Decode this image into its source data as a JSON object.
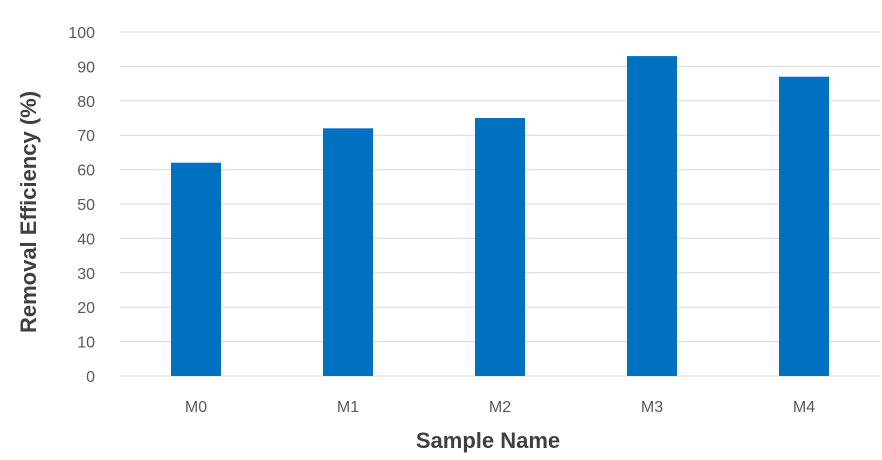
{
  "chart_data": {
    "type": "bar",
    "title": "",
    "xlabel": "Sample Name",
    "ylabel": "Removal Efficiency (%)",
    "categories": [
      "M0",
      "M1",
      "M2",
      "M3",
      "M4"
    ],
    "values": [
      62,
      72,
      75,
      93,
      87
    ],
    "ylim": [
      0,
      100
    ],
    "yticks": [
      0,
      10,
      20,
      30,
      40,
      50,
      60,
      70,
      80,
      90,
      100
    ],
    "grid": "horizontal",
    "legend": "none",
    "bar_color": "#0070C0",
    "grid_color": "#D9D9D9",
    "text_color": "#595959"
  }
}
